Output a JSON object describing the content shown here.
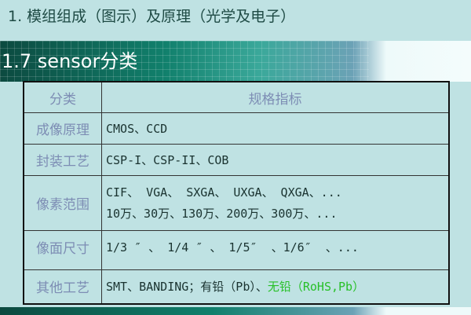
{
  "header": {
    "section": "1. 模组组成（图示）及原理（光学及电子）",
    "title": "1.7 sensor分类"
  },
  "table": {
    "headers": [
      "分类",
      "规格指标"
    ],
    "rows": [
      {
        "label": "成像原理",
        "lines": [
          "CMOS、CCD"
        ]
      },
      {
        "label": "封装工艺",
        "lines": [
          "CSP-I、CSP-II、COB"
        ]
      },
      {
        "label": "像素范围",
        "lines": [
          "CIF、 VGA、 SXGA、 UXGA、 QXGA、...",
          "10万、30万、130万、200万、300万、..."
        ]
      },
      {
        "label": "像面尺寸",
        "lines": [
          "1/3 ″ 、 1/4 ″ 、 1/5″  、1/6″  、..."
        ]
      },
      {
        "label": "其他工艺",
        "lines": [
          "SMT、BANDING；有铅（Pb）、"
        ],
        "green": "无铅（RoHS,Pb）"
      }
    ]
  },
  "colors": {
    "label": "#7d8db4",
    "highlight": "#28c028"
  }
}
